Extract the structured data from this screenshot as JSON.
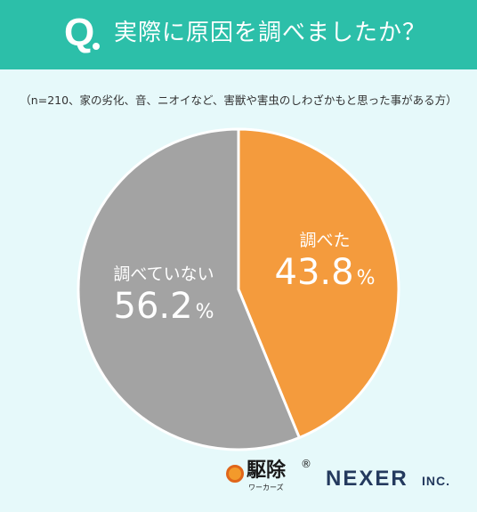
{
  "header": {
    "q_mark": "Q",
    "question": "実際に原因を調べましたか？"
  },
  "note": "（n=210、家の劣化、音、ニオイなど、害獣や害虫のしわざかもと思った事がある方）",
  "chart_data": {
    "type": "pie",
    "title": "実際に原因を調べましたか？",
    "slices": [
      {
        "label": "調べた",
        "value": 43.8,
        "display": "43.8",
        "unit": "%",
        "color": "#f49b3d"
      },
      {
        "label": "調べていない",
        "value": 56.2,
        "display": "56.2",
        "unit": "%",
        "color": "#a3a3a3"
      }
    ],
    "start": "12 o'clock",
    "direction": "clockwise",
    "legend": "none"
  },
  "logos": {
    "kujo_name": "駆除",
    "kujo_reg": "®",
    "kujo_sub": "ワーカーズ",
    "nexer": "NEXER",
    "nexer_inc": "INC."
  },
  "colors": {
    "header": "#2cbfa9",
    "background": "#e6f9fa",
    "slice_border": "#ffffff"
  }
}
